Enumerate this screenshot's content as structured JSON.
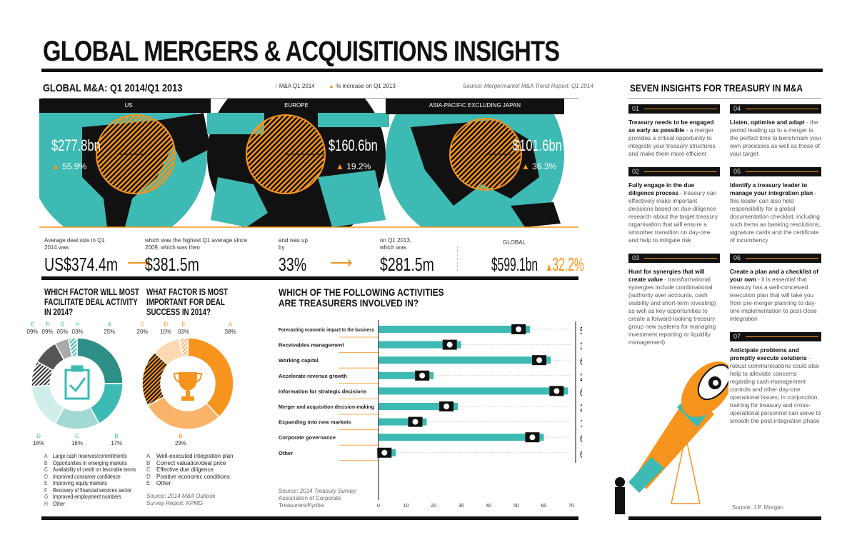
{
  "title": "GLOBAL MERGERS & ACQUISITIONS INSIGHTS",
  "colors": {
    "teal": "#3dbab3",
    "orange": "#f7941d",
    "black": "#111111"
  },
  "global": {
    "heading": "GLOBAL M&A: Q1 2014/Q1 2013",
    "legend_ma": "M&A Q1 2014",
    "legend_increase": "% increase on Q1 2013",
    "source_label": "Source:",
    "source": "Mergermarket M&A Trend Report: Q1 2014",
    "regions": [
      {
        "name": "US",
        "value": "$277.8bn",
        "increase": "55.9%"
      },
      {
        "name": "EUROPE",
        "value": "$160.6bn",
        "increase": "19.2%"
      },
      {
        "name": "ASIA-PACIFIC EXCLUDING JAPAN",
        "value": "$101.6bn",
        "increase": "36.3%"
      }
    ],
    "stats": [
      {
        "label": "Average deal size in Q1 2014 was",
        "value": "US$374.4m"
      },
      {
        "label": "which was the highest Q1 average since 2009, which was then",
        "value": "$381.5m"
      },
      {
        "label": "and was up by",
        "value": "33%"
      },
      {
        "label": "on Q1 2013, which was",
        "value": "$281.5m"
      }
    ],
    "global_label": "GLOBAL",
    "global_value": "$599.1bn",
    "global_increase": "32.2%"
  },
  "chart_data": [
    {
      "type": "pie",
      "title": "WHICH FACTOR WILL MOST FACILITATE DEAL ACTIVITY IN 2014?",
      "letters": [
        "A",
        "B",
        "C",
        "D",
        "E",
        "F",
        "G",
        "H"
      ],
      "values": [
        25,
        17,
        16,
        16,
        9,
        9,
        5,
        3
      ],
      "value_labels": [
        "25%",
        "17%",
        "16%",
        "16%",
        "09%",
        "09%",
        "05%",
        "03%"
      ],
      "colors": [
        "#2e8f88",
        "#3dbab3",
        "#a3d8d3",
        "#cfeeeb",
        "hatch-dark",
        "#555555",
        "#aaaaaa",
        "hatch-teal"
      ],
      "labels": [
        "Large cash reserves/commitments",
        "Opportunities in emerging markets",
        "Availability of credit on favorable terms",
        "Improved consumer confidence",
        "Improving equity markets",
        "Recovery of financial services sector",
        "Improved employment numbers",
        "Other"
      ]
    },
    {
      "type": "pie",
      "title": "WHAT FACTOR IS MOST IMPORTANT FOR DEAL SUCCESS IN 2014?",
      "letters": [
        "A",
        "B",
        "C",
        "D",
        "E"
      ],
      "values": [
        38,
        29,
        20,
        10,
        3
      ],
      "value_labels": [
        "38%",
        "29%",
        "20%",
        "10%",
        "03%"
      ],
      "colors": [
        "#f7941d",
        "#f9b46a",
        "hatch-orange",
        "#fcd9b0",
        "hatch-light"
      ],
      "labels": [
        "Well-executed integration plan",
        "Correct valuation/deal price",
        "Effective due diligence",
        "Positive economic conditions",
        "Other"
      ],
      "source_label": "Source:",
      "source": "2014 M&A Outlook Survey Report, KPMG"
    },
    {
      "type": "bar",
      "title": "WHICH OF THE FOLLOWING ACTIVITIES ARE TREASURERS INVOLVED IN?",
      "categories": [
        "Forecasting economic impact to the business",
        "Receivables management",
        "Working capital",
        "Accelerate revenue growth",
        "Information for strategic decisions",
        "Merger and acquisition decision-making",
        "Expanding into new markets",
        "Corporate governance",
        "Other"
      ],
      "values": [
        55,
        30,
        62.5,
        20,
        68.8,
        28.8,
        17.5,
        60,
        6.3
      ],
      "value_labels": [
        "55%",
        "30%",
        "62.5%",
        "20%",
        "68.8%",
        "28.8%",
        "17.5%",
        "60%",
        "6.3%"
      ],
      "xlim": [
        0,
        70
      ],
      "xticks": [
        "0",
        "10",
        "20",
        "30",
        "40",
        "50",
        "60",
        "70"
      ],
      "source_label": "Source:",
      "source": "2014 Treasury Survey,",
      "source2": "Association of Corporate Treasurers/Kyriba"
    }
  ],
  "insights": {
    "heading": "SEVEN INSIGHTS FOR TREASURY IN M&A",
    "items": [
      {
        "num": "01",
        "bold": "Treasury needs to be engaged as early as possible",
        "text": " - a merger provides a critical opportunity to integrate your treasury structures and make them more efficient"
      },
      {
        "num": "02",
        "bold": "Fully engage in the due diligence process",
        "text": " - treasury can effectively make important decisions based on due-diligence research about the target treasury organisation that will ensure a smoother transition on day-one and help to mitigate risk"
      },
      {
        "num": "03",
        "bold": "Hunt for synergies that will create value",
        "text": " - transformational synergies include combinational (authority over accounts, cash visibility and short-term investing) as well as key opportunities to create a forward-looking treasury group new systems for managing investment reporting or liquidity management)"
      },
      {
        "num": "04",
        "bold": "Listen, optimise and adapt",
        "text": " - the period leading up to a merger is the perfect time to benchmark your own processes as well as those of your target"
      },
      {
        "num": "05",
        "bold": "Identify a treasury leader to manage your integration plan",
        "text": " - this leader can also hold responsibility for a global documentation checklist, including such items as banking resolutions, signature cards and the certificate of incumbency"
      },
      {
        "num": "06",
        "bold": "Create a plan and a checklist of your own",
        "text": " - it is essential that treasury has a well-conceived execution plan that will take you from pre-merger planning to day-one implementation to post-close integration"
      },
      {
        "num": "07",
        "bold": "Anticipate problems and promptly execute solutions",
        "text": " - robust communications could also help to alleviate concerns regarding cash-management controls and other day-one operational issues; in conjunction, training for treasury and cross-operational personnel can serve to smooth the post-integration phase"
      }
    ],
    "source_label": "Source:",
    "source": "J.P. Morgan"
  }
}
